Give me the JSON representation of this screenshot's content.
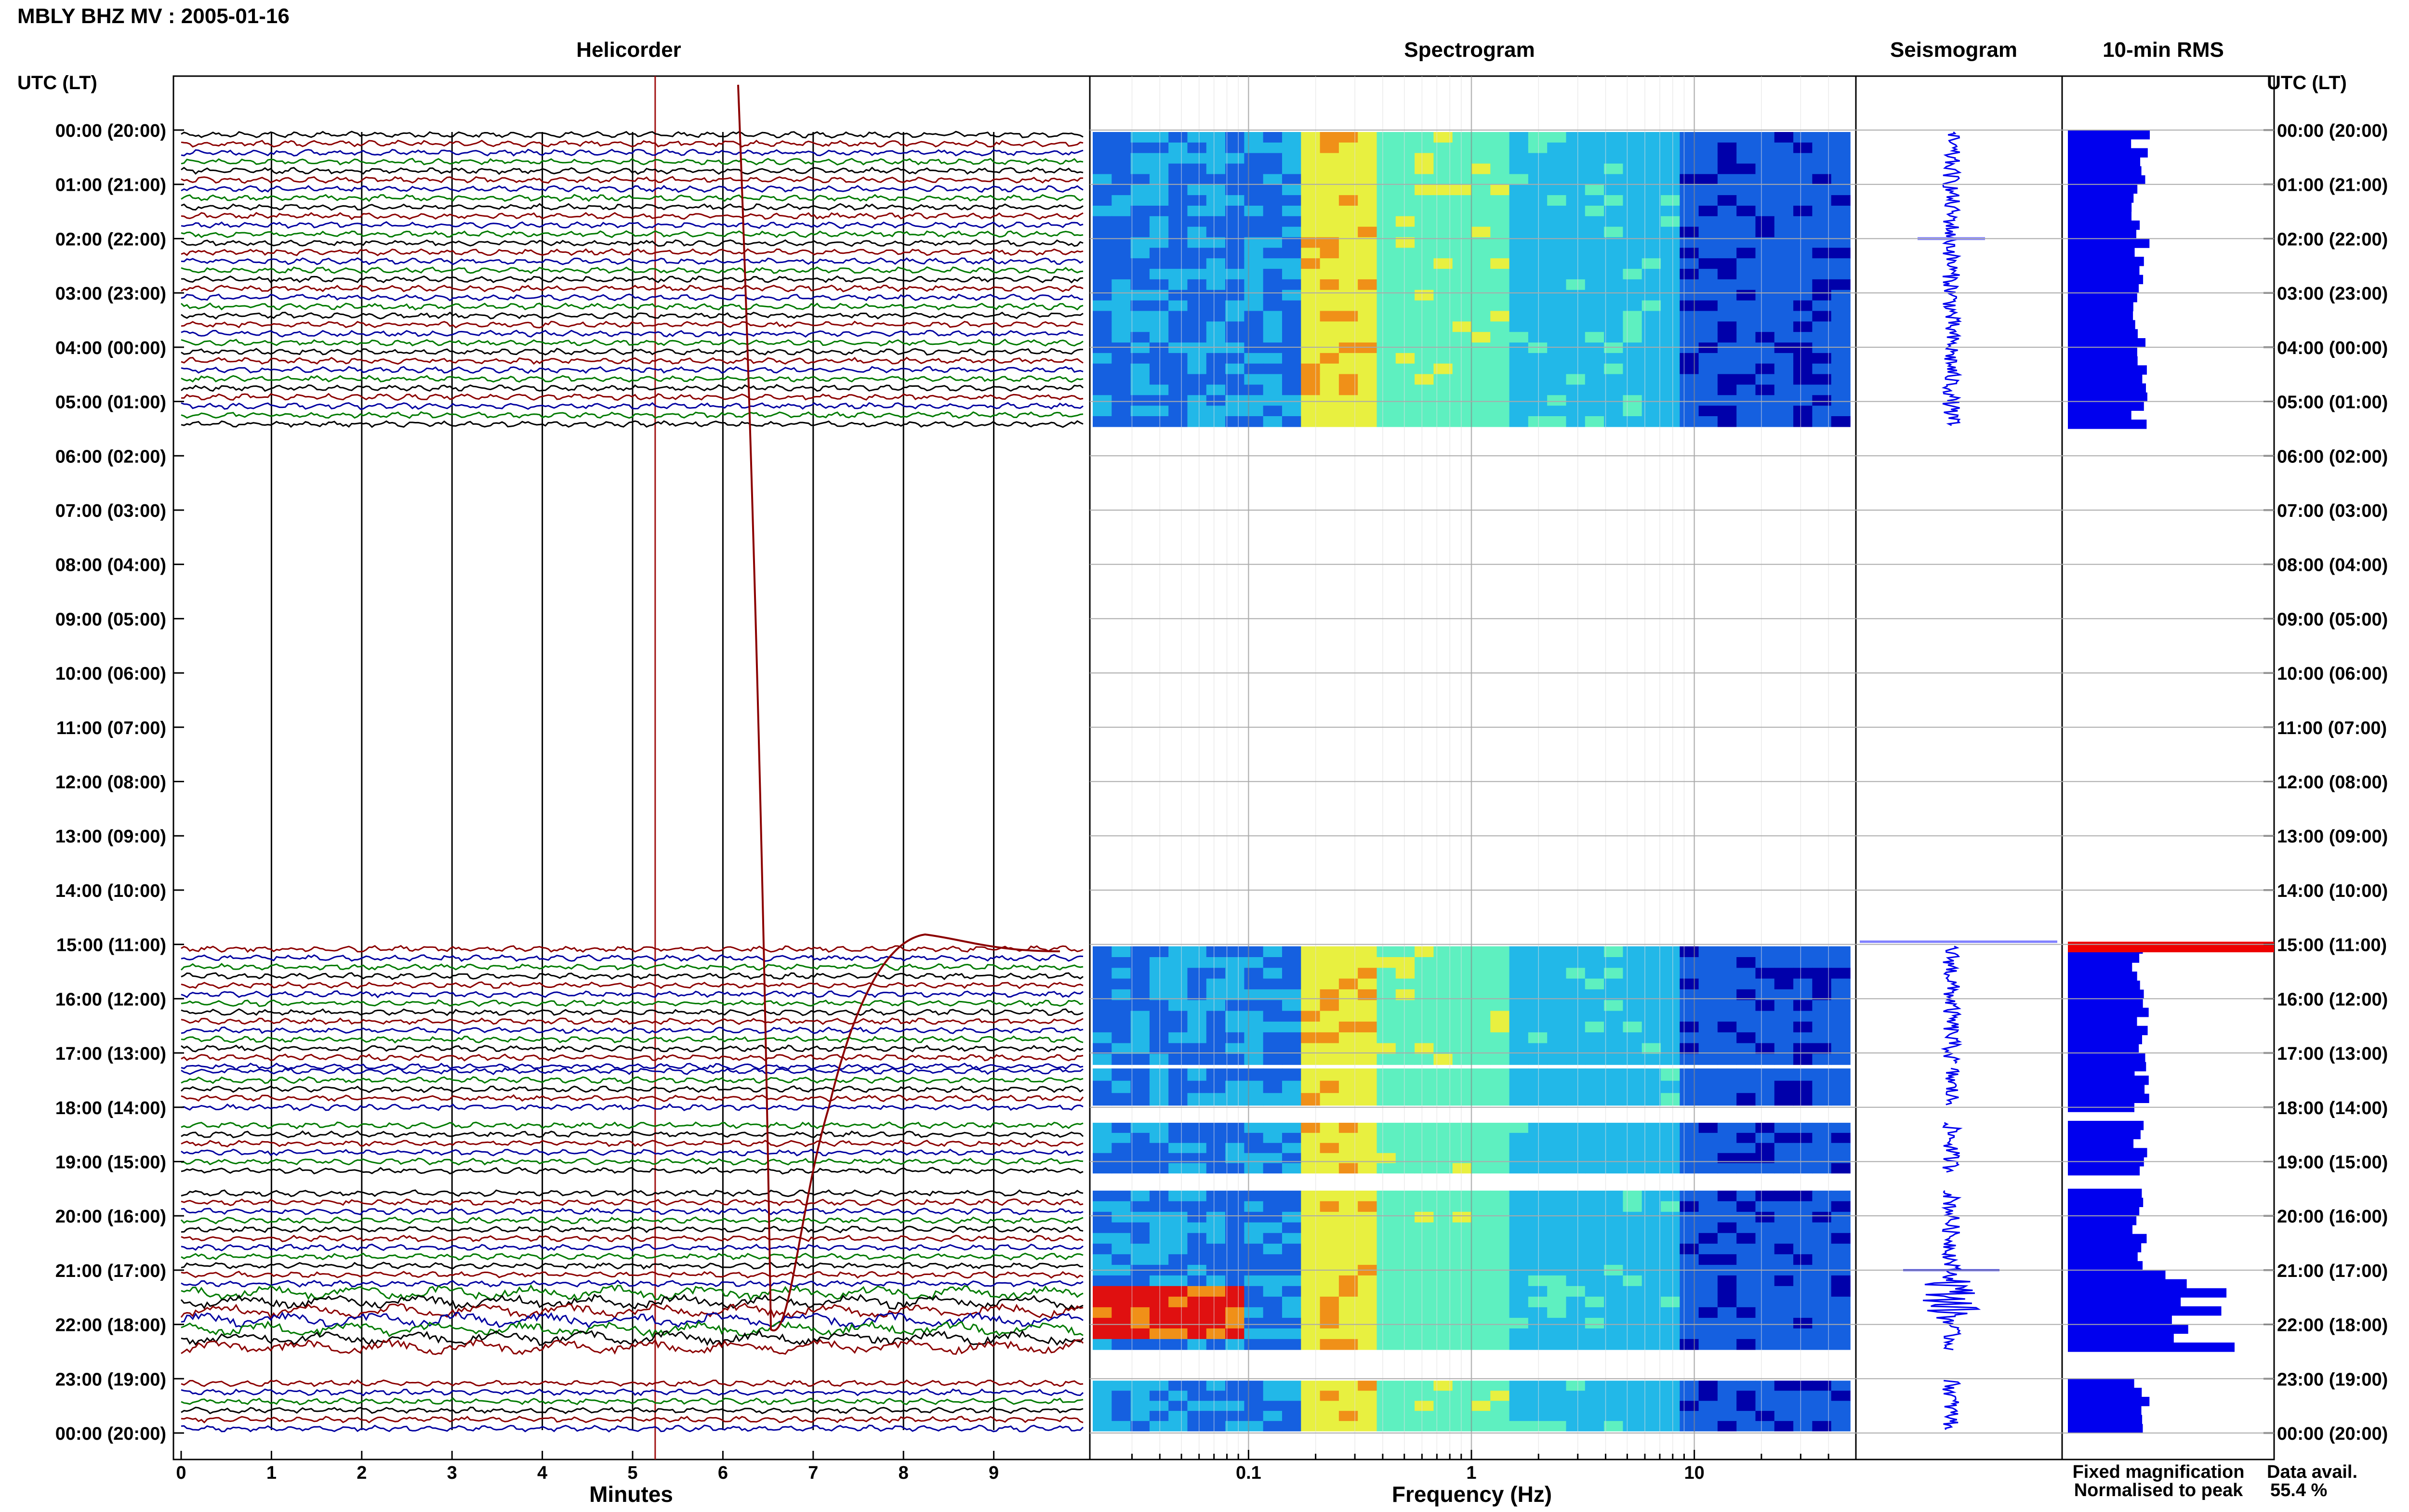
{
  "figure": {
    "title": "MBLY BHZ MV : 2005-01-16",
    "left_axis_header": "UTC (LT)",
    "right_axis_header": "UTC (LT)"
  },
  "panels": {
    "helicorder": {
      "title": "Helicorder",
      "xlabel": "Minutes"
    },
    "spectrogram": {
      "title": "Spectrogram",
      "xlabel": "Frequency (Hz)"
    },
    "seismogram": {
      "title": "Seismogram"
    },
    "rms": {
      "title": "10-min RMS"
    }
  },
  "legend": {
    "fixed": "Fixed magnification",
    "normalised": "Normalised to peak",
    "fixed_color": "#1010ee",
    "normalised_color": "#ee1010"
  },
  "data_avail": {
    "label": "Data avail.",
    "value": "55.4 %"
  },
  "hour_labels": [
    "00:00 (20:00)",
    "01:00 (21:00)",
    "02:00 (22:00)",
    "03:00 (23:00)",
    "04:00 (00:00)",
    "05:00 (01:00)",
    "06:00 (02:00)",
    "07:00 (03:00)",
    "08:00 (04:00)",
    "09:00 (05:00)",
    "10:00 (06:00)",
    "11:00 (07:00)",
    "12:00 (08:00)",
    "13:00 (09:00)",
    "14:00 (10:00)",
    "15:00 (11:00)",
    "16:00 (12:00)",
    "17:00 (13:00)",
    "18:00 (14:00)",
    "19:00 (15:00)",
    "20:00 (16:00)",
    "21:00 (17:00)",
    "22:00 (18:00)",
    "23:00 (19:00)",
    "00:00 (20:00)"
  ],
  "chart_data": [
    {
      "type": "line",
      "name": "helicorder",
      "x_ticks": [
        "0",
        "1",
        "2",
        "3",
        "4",
        "5",
        "6",
        "7",
        "8",
        "9"
      ],
      "xlim": [
        0,
        10
      ],
      "trace_colors": [
        "#000000",
        "#8b0000",
        "#0000a0",
        "#007a00"
      ],
      "data_segments_hours": [
        [
          0,
          5.5
        ],
        [
          15,
          17.25
        ],
        [
          17.25,
          18
        ],
        [
          18.25,
          19.25
        ],
        [
          19.5,
          22.5
        ],
        [
          23,
          24
        ]
      ],
      "event_marker_minute": 5.25
    },
    {
      "type": "heatmap",
      "name": "spectrogram",
      "x_scale": "log",
      "x_ticks": [
        "0.1",
        "1",
        "10"
      ],
      "xlim": [
        0.02,
        50
      ],
      "colormap": [
        "#0000aa",
        "#1560e0",
        "#22b8e8",
        "#5ef0c0",
        "#e8f040",
        "#f09018",
        "#e01010"
      ]
    },
    {
      "type": "line",
      "name": "seismogram"
    },
    {
      "type": "bar",
      "name": "10-min RMS",
      "color": "#0000ee",
      "peak_color": "#ee0000"
    }
  ]
}
